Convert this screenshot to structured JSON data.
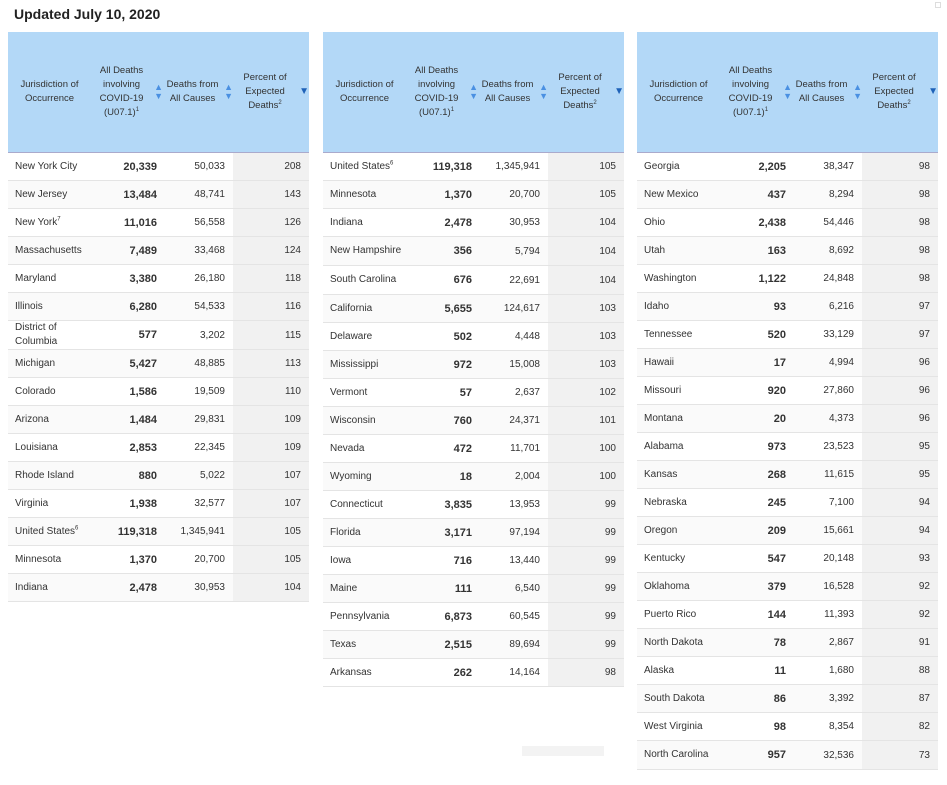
{
  "title": "Updated July 10, 2020",
  "headers": {
    "jurisdiction": "Jurisdiction of Occurrence",
    "covid_deaths": "All Deaths involving COVID-19 (U07.1)",
    "covid_sup": "1",
    "all_deaths": "Deaths from All Causes",
    "percent": "Percent of Expected Deaths",
    "percent_sup": "2"
  },
  "tables": [
    {
      "rows": [
        {
          "name": "New York City",
          "sup": "",
          "covid": "20,339",
          "all": "50,033",
          "pct": "208"
        },
        {
          "name": "New Jersey",
          "sup": "",
          "covid": "13,484",
          "all": "48,741",
          "pct": "143"
        },
        {
          "name": "New York",
          "sup": "7",
          "covid": "11,016",
          "all": "56,558",
          "pct": "126"
        },
        {
          "name": "Massachusetts",
          "sup": "",
          "covid": "7,489",
          "all": "33,468",
          "pct": "124"
        },
        {
          "name": "Maryland",
          "sup": "",
          "covid": "3,380",
          "all": "26,180",
          "pct": "118"
        },
        {
          "name": "Illinois",
          "sup": "",
          "covid": "6,280",
          "all": "54,533",
          "pct": "116"
        },
        {
          "name": "District of Columbia",
          "sup": "",
          "covid": "577",
          "all": "3,202",
          "pct": "115",
          "tall": true
        },
        {
          "name": "Michigan",
          "sup": "",
          "covid": "5,427",
          "all": "48,885",
          "pct": "113"
        },
        {
          "name": "Colorado",
          "sup": "",
          "covid": "1,586",
          "all": "19,509",
          "pct": "110"
        },
        {
          "name": "Arizona",
          "sup": "",
          "covid": "1,484",
          "all": "29,831",
          "pct": "109"
        },
        {
          "name": "Louisiana",
          "sup": "",
          "covid": "2,853",
          "all": "22,345",
          "pct": "109"
        },
        {
          "name": "Rhode Island",
          "sup": "",
          "covid": "880",
          "all": "5,022",
          "pct": "107"
        },
        {
          "name": "Virginia",
          "sup": "",
          "covid": "1,938",
          "all": "32,577",
          "pct": "107"
        },
        {
          "name": "United States",
          "sup": "6",
          "covid": "119,318",
          "all": "1,345,941",
          "pct": "105"
        },
        {
          "name": "Minnesota",
          "sup": "",
          "covid": "1,370",
          "all": "20,700",
          "pct": "105"
        },
        {
          "name": "Indiana",
          "sup": "",
          "covid": "2,478",
          "all": "30,953",
          "pct": "104"
        }
      ]
    },
    {
      "rows": [
        {
          "name": "United States",
          "sup": "6",
          "covid": "119,318",
          "all": "1,345,941",
          "pct": "105"
        },
        {
          "name": "Minnesota",
          "sup": "",
          "covid": "1,370",
          "all": "20,700",
          "pct": "105"
        },
        {
          "name": "Indiana",
          "sup": "",
          "covid": "2,478",
          "all": "30,953",
          "pct": "104"
        },
        {
          "name": "New Hampshire",
          "sup": "",
          "covid": "356",
          "all": "5,794",
          "pct": "104",
          "tall": true
        },
        {
          "name": "South Carolina",
          "sup": "",
          "covid": "676",
          "all": "22,691",
          "pct": "104",
          "tall": true
        },
        {
          "name": "California",
          "sup": "",
          "covid": "5,655",
          "all": "124,617",
          "pct": "103"
        },
        {
          "name": "Delaware",
          "sup": "",
          "covid": "502",
          "all": "4,448",
          "pct": "103"
        },
        {
          "name": "Mississippi",
          "sup": "",
          "covid": "972",
          "all": "15,008",
          "pct": "103"
        },
        {
          "name": "Vermont",
          "sup": "",
          "covid": "57",
          "all": "2,637",
          "pct": "102"
        },
        {
          "name": "Wisconsin",
          "sup": "",
          "covid": "760",
          "all": "24,371",
          "pct": "101"
        },
        {
          "name": "Nevada",
          "sup": "",
          "covid": "472",
          "all": "11,701",
          "pct": "100"
        },
        {
          "name": "Wyoming",
          "sup": "",
          "covid": "18",
          "all": "2,004",
          "pct": "100"
        },
        {
          "name": "Connecticut",
          "sup": "",
          "covid": "3,835",
          "all": "13,953",
          "pct": "99"
        },
        {
          "name": "Florida",
          "sup": "",
          "covid": "3,171",
          "all": "97,194",
          "pct": "99"
        },
        {
          "name": "Iowa",
          "sup": "",
          "covid": "716",
          "all": "13,440",
          "pct": "99"
        },
        {
          "name": "Maine",
          "sup": "",
          "covid": "111",
          "all": "6,540",
          "pct": "99"
        },
        {
          "name": "Pennsylvania",
          "sup": "",
          "covid": "6,873",
          "all": "60,545",
          "pct": "99"
        },
        {
          "name": "Texas",
          "sup": "",
          "covid": "2,515",
          "all": "89,694",
          "pct": "99"
        },
        {
          "name": "Arkansas",
          "sup": "",
          "covid": "262",
          "all": "14,164",
          "pct": "98"
        }
      ]
    },
    {
      "rows": [
        {
          "name": "Georgia",
          "sup": "",
          "covid": "2,205",
          "all": "38,347",
          "pct": "98"
        },
        {
          "name": "New Mexico",
          "sup": "",
          "covid": "437",
          "all": "8,294",
          "pct": "98"
        },
        {
          "name": "Ohio",
          "sup": "",
          "covid": "2,438",
          "all": "54,446",
          "pct": "98"
        },
        {
          "name": "Utah",
          "sup": "",
          "covid": "163",
          "all": "8,692",
          "pct": "98"
        },
        {
          "name": "Washington",
          "sup": "",
          "covid": "1,122",
          "all": "24,848",
          "pct": "98"
        },
        {
          "name": "Idaho",
          "sup": "",
          "covid": "93",
          "all": "6,216",
          "pct": "97"
        },
        {
          "name": "Tennessee",
          "sup": "",
          "covid": "520",
          "all": "33,129",
          "pct": "97"
        },
        {
          "name": "Hawaii",
          "sup": "",
          "covid": "17",
          "all": "4,994",
          "pct": "96"
        },
        {
          "name": "Missouri",
          "sup": "",
          "covid": "920",
          "all": "27,860",
          "pct": "96"
        },
        {
          "name": "Montana",
          "sup": "",
          "covid": "20",
          "all": "4,373",
          "pct": "96"
        },
        {
          "name": "Alabama",
          "sup": "",
          "covid": "973",
          "all": "23,523",
          "pct": "95"
        },
        {
          "name": "Kansas",
          "sup": "",
          "covid": "268",
          "all": "11,615",
          "pct": "95"
        },
        {
          "name": "Nebraska",
          "sup": "",
          "covid": "245",
          "all": "7,100",
          "pct": "94"
        },
        {
          "name": "Oregon",
          "sup": "",
          "covid": "209",
          "all": "15,661",
          "pct": "94"
        },
        {
          "name": "Kentucky",
          "sup": "",
          "covid": "547",
          "all": "20,148",
          "pct": "93"
        },
        {
          "name": "Oklahoma",
          "sup": "",
          "covid": "379",
          "all": "16,528",
          "pct": "92"
        },
        {
          "name": "Puerto Rico",
          "sup": "",
          "covid": "144",
          "all": "11,393",
          "pct": "92"
        },
        {
          "name": "North Dakota",
          "sup": "",
          "covid": "78",
          "all": "2,867",
          "pct": "91"
        },
        {
          "name": "Alaska",
          "sup": "",
          "covid": "11",
          "all": "1,680",
          "pct": "88"
        },
        {
          "name": "South Dakota",
          "sup": "",
          "covid": "86",
          "all": "3,392",
          "pct": "87"
        },
        {
          "name": "West Virginia",
          "sup": "",
          "covid": "98",
          "all": "8,354",
          "pct": "82"
        },
        {
          "name": "North Carolina",
          "sup": "",
          "covid": "957",
          "all": "32,536",
          "pct": "73",
          "tall": true
        }
      ]
    }
  ]
}
